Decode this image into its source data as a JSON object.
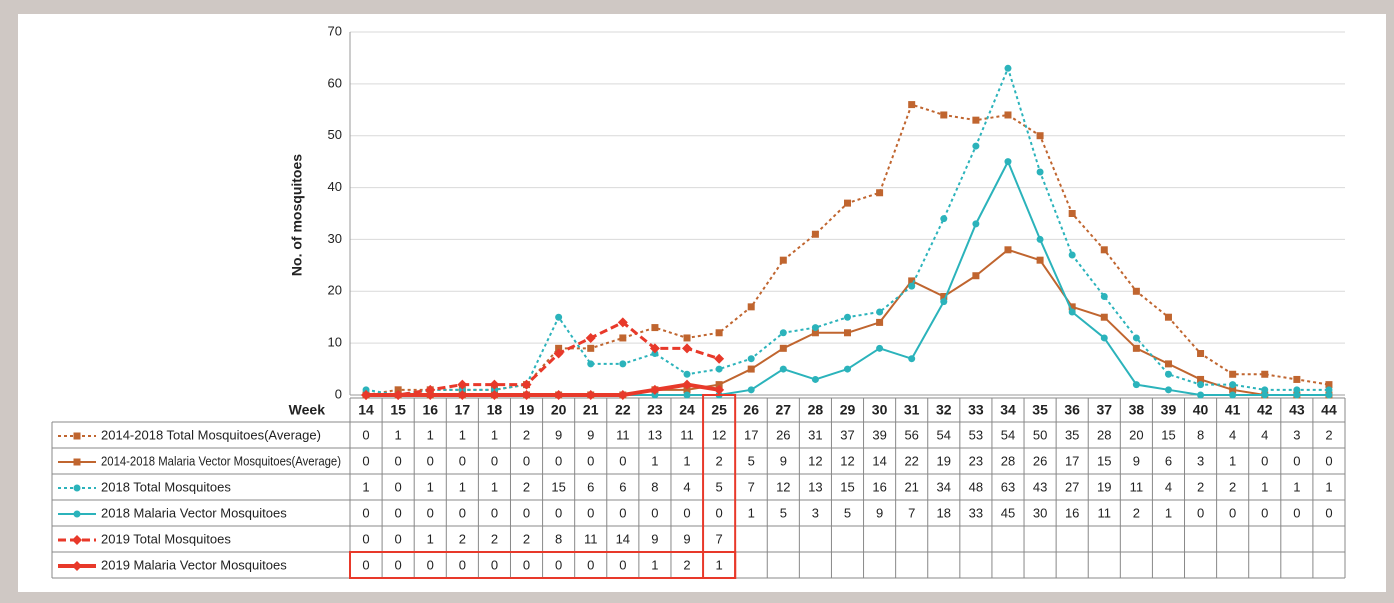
{
  "chart_data": {
    "type": "line",
    "y_label": "No. of mosquitoes",
    "x_label": "Week",
    "categories": [
      "14",
      "15",
      "16",
      "17",
      "18",
      "19",
      "20",
      "21",
      "22",
      "23",
      "24",
      "25",
      "26",
      "27",
      "28",
      "29",
      "30",
      "31",
      "32",
      "33",
      "34",
      "35",
      "36",
      "37",
      "38",
      "39",
      "40",
      "41",
      "42",
      "43",
      "44"
    ],
    "ylim": [
      0,
      70
    ],
    "yticks": [
      0,
      10,
      20,
      30,
      40,
      50,
      60,
      70
    ],
    "grid": true,
    "series": [
      {
        "name": "2014-2018 Total Mosquitoes(Average)",
        "color": "#c0652f",
        "line": "dotted",
        "marker": "square",
        "values": [
          0,
          1,
          1,
          1,
          1,
          2,
          9,
          9,
          11,
          13,
          11,
          12,
          17,
          26,
          31,
          37,
          39,
          56,
          54,
          53,
          54,
          50,
          35,
          28,
          20,
          15,
          8,
          4,
          4,
          3,
          2
        ]
      },
      {
        "name": "2014-2018 Malaria Vector Mosquitoes(Average)",
        "color": "#c0652f",
        "line": "solid",
        "marker": "square",
        "values": [
          0,
          0,
          0,
          0,
          0,
          0,
          0,
          0,
          0,
          1,
          1,
          2,
          5,
          9,
          12,
          12,
          14,
          22,
          19,
          23,
          28,
          26,
          17,
          15,
          9,
          6,
          3,
          1,
          0,
          0,
          0
        ]
      },
      {
        "name": "2018 Total Mosquitoes",
        "color": "#2bb3bb",
        "line": "dotted",
        "marker": "circle",
        "values": [
          1,
          0,
          1,
          1,
          1,
          2,
          15,
          6,
          6,
          8,
          4,
          5,
          7,
          12,
          13,
          15,
          16,
          21,
          34,
          48,
          63,
          43,
          27,
          19,
          11,
          4,
          2,
          2,
          1,
          1,
          1
        ]
      },
      {
        "name": "2018 Malaria Vector Mosquitoes",
        "color": "#2bb3bb",
        "line": "solid",
        "marker": "circle",
        "values": [
          0,
          0,
          0,
          0,
          0,
          0,
          0,
          0,
          0,
          0,
          0,
          0,
          1,
          5,
          3,
          5,
          9,
          7,
          18,
          33,
          45,
          30,
          16,
          11,
          2,
          1,
          0,
          0,
          0,
          0,
          0
        ]
      },
      {
        "name": "2019 Total Mosquitoes",
        "color": "#e8392a",
        "line": "dashed",
        "marker": "diamond",
        "values": [
          0,
          0,
          1,
          2,
          2,
          2,
          8,
          11,
          14,
          9,
          9,
          7,
          null,
          null,
          null,
          null,
          null,
          null,
          null,
          null,
          null,
          null,
          null,
          null,
          null,
          null,
          null,
          null,
          null,
          null,
          null
        ]
      },
      {
        "name": "2019 Malaria Vector Mosquitoes",
        "color": "#e8392a",
        "line": "bold",
        "marker": "diamond",
        "values": [
          0,
          0,
          0,
          0,
          0,
          0,
          0,
          0,
          0,
          1,
          2,
          1,
          null,
          null,
          null,
          null,
          null,
          null,
          null,
          null,
          null,
          null,
          null,
          null,
          null,
          null,
          null,
          null,
          null,
          null,
          null
        ]
      }
    ]
  }
}
